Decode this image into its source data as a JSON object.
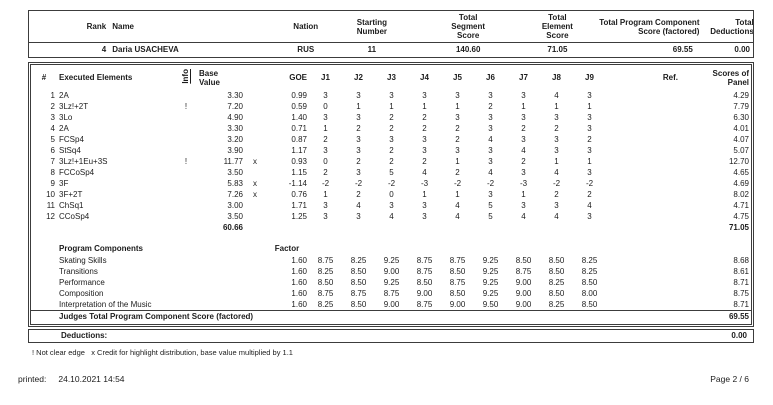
{
  "title_row": {
    "rank_label": "Rank",
    "name_label": "Name",
    "nation_label": "Nation",
    "starting_label": "Starting Number",
    "tss_label": "Total Segment Score",
    "tes_label": "Total Element Score",
    "tpcs_label": "Total Program Component Score (factored)",
    "ded_label": "Total Deductions",
    "rank": "4",
    "name": "Daria USACHEVA",
    "nation": "RUS",
    "starting_number": "11",
    "tss": "140.60",
    "tes": "71.05",
    "tpcs": "69.55",
    "deductions": "0.00"
  },
  "elements_table": {
    "headers": {
      "num": "#",
      "name": "Executed Elements",
      "info": "Info",
      "bv": "Base Value",
      "goe": "GOE",
      "judges": [
        "J1",
        "J2",
        "J3",
        "J4",
        "J5",
        "J6",
        "J7",
        "J8",
        "J9"
      ],
      "ref": "Ref.",
      "panel": "Scores of Panel"
    },
    "rows": [
      {
        "num": "1",
        "name": "2A",
        "info": "",
        "bv": "3.30",
        "x": "",
        "goe": "0.99",
        "j": [
          "3",
          "3",
          "3",
          "3",
          "3",
          "3",
          "3",
          "4",
          "3"
        ],
        "panel": "4.29"
      },
      {
        "num": "2",
        "name": "3Lz!+2T",
        "info": "!",
        "bv": "7.20",
        "x": "",
        "goe": "0.59",
        "j": [
          "0",
          "1",
          "1",
          "1",
          "1",
          "2",
          "1",
          "1",
          "1"
        ],
        "panel": "7.79"
      },
      {
        "num": "3",
        "name": "3Lo",
        "info": "",
        "bv": "4.90",
        "x": "",
        "goe": "1.40",
        "j": [
          "3",
          "3",
          "2",
          "2",
          "3",
          "3",
          "3",
          "3",
          "3"
        ],
        "panel": "6.30"
      },
      {
        "num": "4",
        "name": "2A",
        "info": "",
        "bv": "3.30",
        "x": "",
        "goe": "0.71",
        "j": [
          "1",
          "2",
          "2",
          "2",
          "2",
          "3",
          "2",
          "2",
          "3"
        ],
        "panel": "4.01"
      },
      {
        "num": "5",
        "name": "FCSp4",
        "info": "",
        "bv": "3.20",
        "x": "",
        "goe": "0.87",
        "j": [
          "2",
          "3",
          "3",
          "3",
          "2",
          "4",
          "3",
          "3",
          "2"
        ],
        "panel": "4.07"
      },
      {
        "num": "6",
        "name": "StSq4",
        "info": "",
        "bv": "3.90",
        "x": "",
        "goe": "1.17",
        "j": [
          "3",
          "3",
          "2",
          "3",
          "3",
          "3",
          "4",
          "3",
          "3"
        ],
        "panel": "5.07"
      },
      {
        "num": "7",
        "name": "3Lz!+1Eu+3S",
        "info": "!",
        "bv": "11.77",
        "x": "x",
        "goe": "0.93",
        "j": [
          "0",
          "2",
          "2",
          "2",
          "1",
          "3",
          "2",
          "1",
          "1"
        ],
        "panel": "12.70"
      },
      {
        "num": "8",
        "name": "FCCoSp4",
        "info": "",
        "bv": "3.50",
        "x": "",
        "goe": "1.15",
        "j": [
          "2",
          "3",
          "5",
          "4",
          "2",
          "4",
          "3",
          "4",
          "3"
        ],
        "panel": "4.65"
      },
      {
        "num": "9",
        "name": "3F",
        "info": "",
        "bv": "5.83",
        "x": "x",
        "goe": "-1.14",
        "j": [
          "-2",
          "-2",
          "-2",
          "-3",
          "-2",
          "-2",
          "-3",
          "-2",
          "-2"
        ],
        "panel": "4.69"
      },
      {
        "num": "10",
        "name": "3F+2T",
        "info": "",
        "bv": "7.26",
        "x": "x",
        "goe": "0.76",
        "j": [
          "1",
          "2",
          "0",
          "1",
          "1",
          "3",
          "1",
          "2",
          "2"
        ],
        "panel": "8.02"
      },
      {
        "num": "11",
        "name": "ChSq1",
        "info": "",
        "bv": "3.00",
        "x": "",
        "goe": "1.71",
        "j": [
          "3",
          "4",
          "3",
          "3",
          "4",
          "5",
          "3",
          "3",
          "4"
        ],
        "panel": "4.71"
      },
      {
        "num": "12",
        "name": "CCoSp4",
        "info": "",
        "bv": "3.50",
        "x": "",
        "goe": "1.25",
        "j": [
          "3",
          "3",
          "4",
          "3",
          "4",
          "5",
          "4",
          "4",
          "3"
        ],
        "panel": "4.75"
      }
    ],
    "total_bv": "60.66",
    "total_panel": "71.05"
  },
  "components": {
    "title": "Program Components",
    "factor_label": "Factor",
    "rows": [
      {
        "name": "Skating Skills",
        "factor": "1.60",
        "j": [
          "8.75",
          "8.25",
          "9.25",
          "8.75",
          "8.75",
          "9.25",
          "8.50",
          "8.50",
          "8.25"
        ],
        "score": "8.68"
      },
      {
        "name": "Transitions",
        "factor": "1.60",
        "j": [
          "8.25",
          "8.50",
          "9.00",
          "8.75",
          "8.50",
          "9.25",
          "8.75",
          "8.50",
          "8.25"
        ],
        "score": "8.61"
      },
      {
        "name": "Performance",
        "factor": "1.60",
        "j": [
          "8.50",
          "8.50",
          "9.25",
          "8.50",
          "8.75",
          "9.25",
          "9.00",
          "8.25",
          "8.50"
        ],
        "score": "8.71"
      },
      {
        "name": "Composition",
        "factor": "1.60",
        "j": [
          "8.75",
          "8.75",
          "8.75",
          "9.00",
          "8.50",
          "9.25",
          "9.00",
          "8.50",
          "8.00"
        ],
        "score": "8.75"
      },
      {
        "name": "Interpretation of the Music",
        "factor": "1.60",
        "j": [
          "8.25",
          "8.50",
          "9.00",
          "8.75",
          "9.00",
          "9.50",
          "9.00",
          "8.25",
          "8.50"
        ],
        "score": "8.71"
      }
    ],
    "total_label": "Judges Total Program Component Score (factored)",
    "total": "69.55"
  },
  "deductions": {
    "label": "Deductions:",
    "value": "0.00"
  },
  "footnote": "! Not clear edge   x Credit for highlight distribution, base value multiplied by 1.1",
  "footer": {
    "printed_label": "printed:",
    "printed_value": "24.10.2021 14:54",
    "page": "Page 2 / 6"
  }
}
